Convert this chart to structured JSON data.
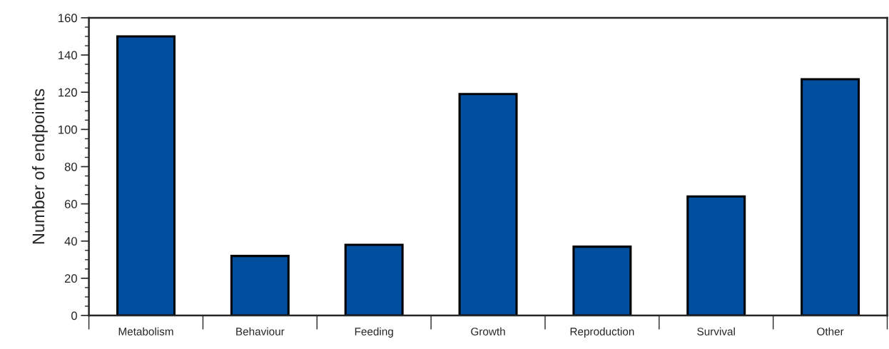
{
  "chart_data": {
    "type": "bar",
    "ylabel": "Number of endpoints",
    "categories": [
      "Metabolism",
      "Behaviour",
      "Feeding",
      "Growth",
      "Reproduction",
      "Survival",
      "Other"
    ],
    "values": [
      150,
      32,
      38,
      119,
      37,
      64,
      127
    ],
    "color": "#004f9f",
    "ylim": [
      0,
      160
    ],
    "yticks": [
      0,
      20,
      40,
      60,
      80,
      100,
      120,
      140,
      160
    ],
    "grid": false
  }
}
